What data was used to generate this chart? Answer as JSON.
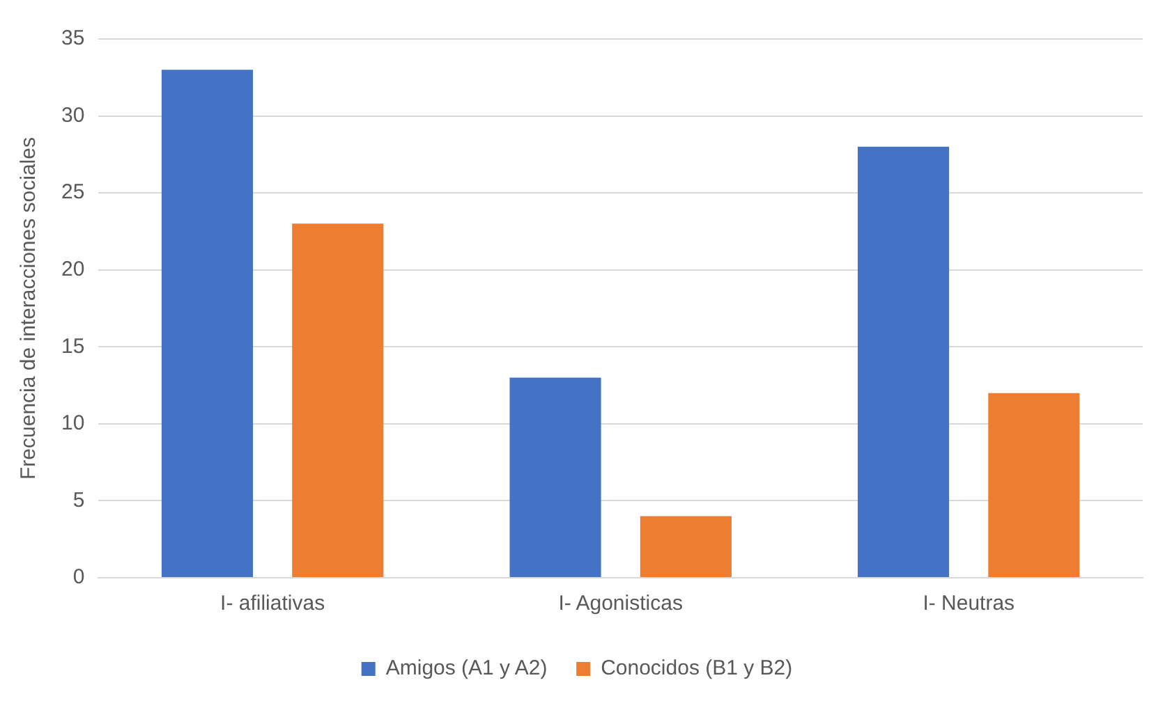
{
  "chart_data": {
    "type": "bar",
    "ylabel": "Frecuencia de interacciones sociales",
    "categories": [
      "I- afiliativas",
      "I- Agonisticas",
      "I- Neutras"
    ],
    "series": [
      {
        "name": "Amigos (A1 y A2)",
        "color": "#4472c4",
        "values": [
          33,
          13,
          28
        ]
      },
      {
        "name": "Conocidos (B1 y B2)",
        "color": "#ed7d31",
        "values": [
          23,
          4,
          12
        ]
      }
    ],
    "ylim": [
      0,
      35
    ],
    "yticks": [
      0,
      5,
      10,
      15,
      20,
      25,
      30,
      35
    ],
    "grid": "y",
    "legend": "bottom"
  }
}
